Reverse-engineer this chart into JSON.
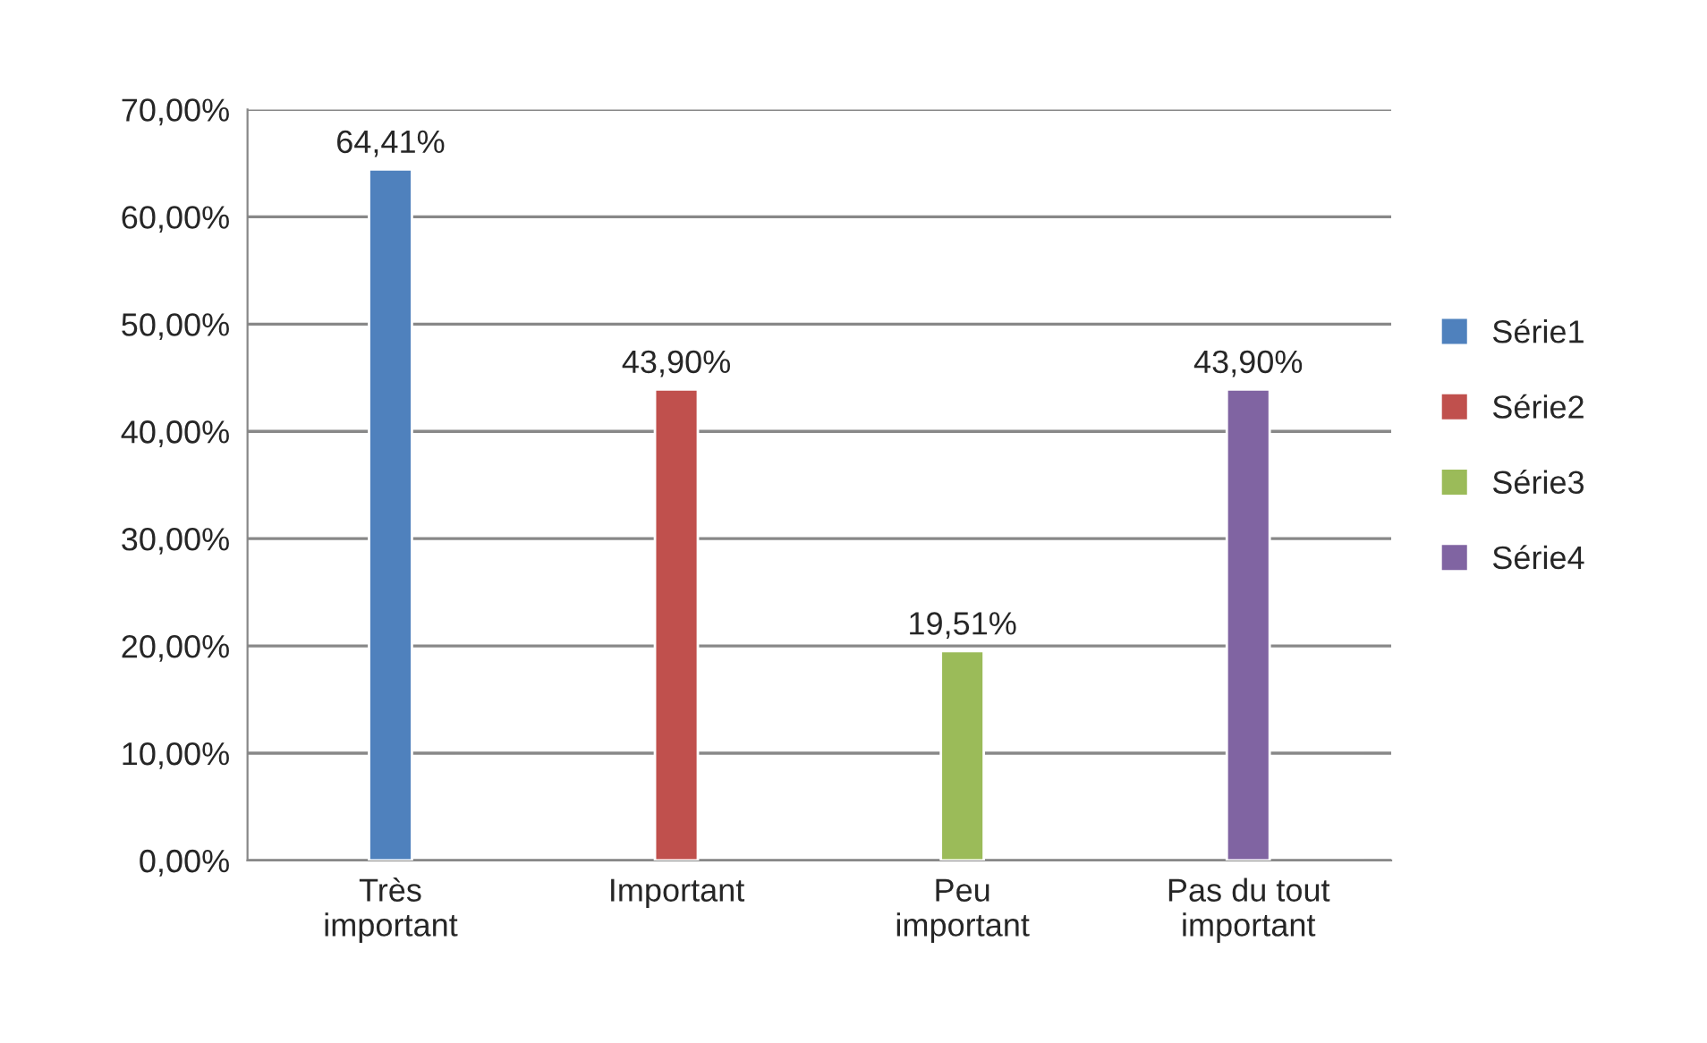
{
  "chart_data": {
    "type": "bar",
    "categories": [
      "Très\nimportant",
      "Important",
      "Peu\nimportant",
      "Pas du tout\nimportant"
    ],
    "series": [
      {
        "name": "Série1",
        "color": "#4f81bd",
        "values": [
          64.41,
          null,
          null,
          null
        ],
        "value_labels": [
          "64,41%",
          null,
          null,
          null
        ]
      },
      {
        "name": "Série2",
        "color": "#c0504d",
        "values": [
          null,
          43.9,
          null,
          null
        ],
        "value_labels": [
          null,
          "43,90%",
          null,
          null
        ]
      },
      {
        "name": "Série3",
        "color": "#9bbb59",
        "values": [
          null,
          null,
          19.51,
          null
        ],
        "value_labels": [
          null,
          null,
          "19,51%",
          null
        ]
      },
      {
        "name": "Série4",
        "color": "#8064a2",
        "values": [
          null,
          null,
          null,
          43.9
        ],
        "value_labels": [
          null,
          null,
          null,
          "43,90%"
        ]
      }
    ],
    "ylim": [
      0,
      70
    ],
    "yticks": [
      {
        "value": 0,
        "label": "0,00%"
      },
      {
        "value": 10,
        "label": "10,00%"
      },
      {
        "value": 20,
        "label": "20,00%"
      },
      {
        "value": 30,
        "label": "30,00%"
      },
      {
        "value": 40,
        "label": "40,00%"
      },
      {
        "value": 50,
        "label": "50,00%"
      },
      {
        "value": 60,
        "label": "60,00%"
      },
      {
        "value": 70,
        "label": "70,00%"
      }
    ],
    "grid": "y",
    "legend": "right"
  }
}
